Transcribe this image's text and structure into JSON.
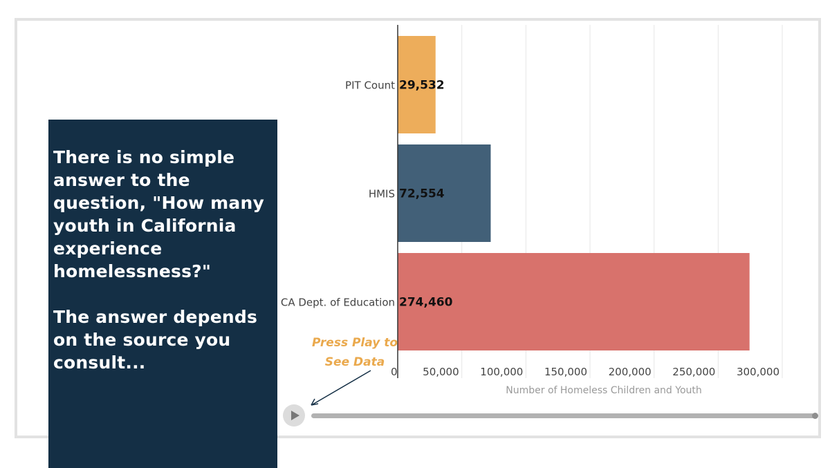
{
  "panel": {
    "question": "There is no simple answer to the question, \"How many youth in California experience homelessness?\"",
    "answer": "The answer depends on the source you consult..."
  },
  "hint": {
    "line1": "Press Play to",
    "line2": "See Data"
  },
  "colors": {
    "panel_bg": "#142f45",
    "hint": "#eaa94d"
  },
  "chart_data": {
    "type": "bar",
    "orientation": "horizontal",
    "categories": [
      "PIT Count",
      "HMIS",
      "CA Dept. of Education"
    ],
    "values": [
      29532,
      72554,
      274460
    ],
    "value_labels": [
      "29,532",
      "72,554",
      "274,460"
    ],
    "colors": [
      "#edad5b",
      "#426078",
      "#d8726c"
    ],
    "xlabel": "Number of Homeless Children and Youth",
    "ylabel": "",
    "xlim": [
      0,
      300000
    ],
    "xticks": [
      0,
      50000,
      100000,
      150000,
      200000,
      250000,
      300000
    ],
    "xtick_labels": [
      "0",
      "50,000",
      "100,000",
      "150,000",
      "200,000",
      "250,000",
      "300,000"
    ],
    "grid": true
  }
}
